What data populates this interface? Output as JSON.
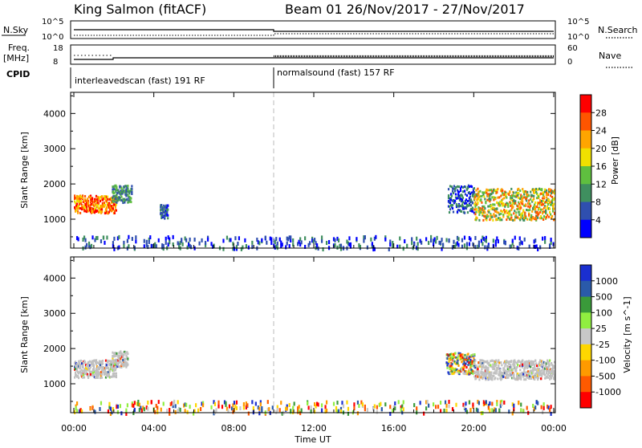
{
  "header": {
    "station_title": "King Salmon (fitACF)",
    "beam_date": "Beam 01  26/Nov/2017 - 27/Nov/2017"
  },
  "top_panels": {
    "nsky_label": "N.Sky",
    "nsky_ticks": [
      "10^5",
      "10^0"
    ],
    "nsearch_label": "N.Search",
    "nsearch_ticks": [
      "10^5",
      "10^0"
    ],
    "freq_label_1": "Freq.",
    "freq_label_2": "[MHz]",
    "freq_ticks": [
      "18",
      "8"
    ],
    "nave_label": "Nave",
    "nave_ticks": [
      "60",
      "0"
    ],
    "cpid_label": "CPID",
    "cpid_modes": [
      "interleavedscan (fast) 191 RF",
      "normalsound (fast) 157 RF"
    ]
  },
  "colors": {
    "power_scale": [
      "#0000ff",
      "#2f4faf",
      "#3f8f5f",
      "#5fbf3f",
      "#f0e000",
      "#ffa500",
      "#ff5500",
      "#ff0000"
    ],
    "velocity_scale": [
      "#ff0000",
      "#ff5a00",
      "#ff9a00",
      "#ffd700",
      "#c8c8c8",
      "#90ee40",
      "#3a9a3a",
      "#2a5aaa",
      "#1a2fd0"
    ],
    "ground_scatter": "#c0c0c0"
  },
  "chart_data": [
    {
      "type": "heatmap",
      "panel": "power",
      "ylabel": "Slant Range [km]",
      "xlabel": "Time UT",
      "x_ticks": [
        "00:00",
        "04:00",
        "08:00",
        "12:00",
        "16:00",
        "20:00",
        "00:00"
      ],
      "x_range_hours": [
        0,
        24
      ],
      "y_ticks": [
        1000,
        2000,
        3000,
        4000
      ],
      "ylim": [
        180,
        4600
      ],
      "colorbar_label": "Power [dB]",
      "colorbar_ticks": [
        "4",
        "8",
        "12",
        "16",
        "20",
        "24",
        "28"
      ],
      "mode_change_hour": 10,
      "echo_regions": [
        {
          "t": [
            0.0,
            2.1
          ],
          "range": [
            1200,
            1700
          ],
          "level": "20-28 dB"
        },
        {
          "t": [
            1.9,
            2.9
          ],
          "range": [
            1500,
            2000
          ],
          "level": "8-16 dB"
        },
        {
          "t": [
            4.3,
            4.7
          ],
          "range": [
            1050,
            1450
          ],
          "level": "4-12 dB"
        },
        {
          "t": [
            18.7,
            20.0
          ],
          "range": [
            1200,
            2000
          ],
          "level": "4-12 dB"
        },
        {
          "t": [
            20.0,
            24.0
          ],
          "range": [
            1000,
            1900
          ],
          "level": "12-28 dB"
        },
        {
          "t": [
            0.0,
            24.0
          ],
          "range": [
            200,
            550
          ],
          "level": "4-12 dB, sparse"
        }
      ]
    },
    {
      "type": "heatmap",
      "panel": "velocity",
      "ylabel": "Slant Range [km]",
      "xlabel": "Time UT",
      "x_ticks": [
        "00:00",
        "04:00",
        "08:00",
        "12:00",
        "16:00",
        "20:00",
        "00:00"
      ],
      "x_range_hours": [
        0,
        24
      ],
      "y_ticks": [
        1000,
        2000,
        3000,
        4000
      ],
      "ylim": [
        180,
        4600
      ],
      "colorbar_label": "Velocity [m s^-1]",
      "colorbar_ticks": [
        "1000",
        "500",
        "100",
        "25",
        "-25",
        "-100",
        "-500",
        "-1000"
      ],
      "echo_regions": [
        {
          "t": [
            0.0,
            2.1
          ],
          "range": [
            1200,
            1700
          ],
          "level": "ground scatter"
        },
        {
          "t": [
            1.9,
            2.7
          ],
          "range": [
            1500,
            1950
          ],
          "level": "ground scatter"
        },
        {
          "t": [
            18.6,
            20.0
          ],
          "range": [
            1300,
            1900
          ],
          "level": "mixed"
        },
        {
          "t": [
            20.0,
            24.0
          ],
          "range": [
            1150,
            1700
          ],
          "level": "ground scatter"
        },
        {
          "t": [
            0.0,
            24.0
          ],
          "range": [
            200,
            550
          ],
          "level": "mixed, sparse"
        }
      ]
    }
  ],
  "axis_title": "Time UT"
}
